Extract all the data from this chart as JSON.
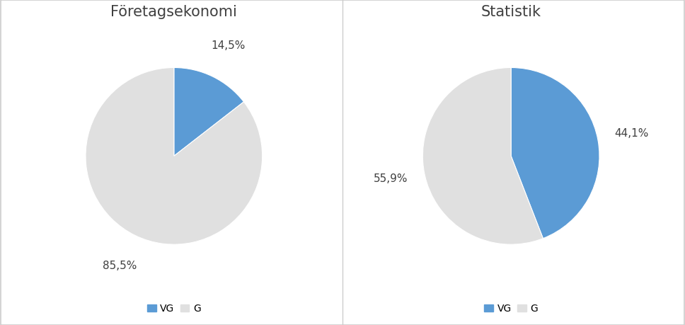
{
  "chart1": {
    "title": "Företagsekonomi",
    "values": [
      14.5,
      85.5
    ],
    "labels": [
      "VG",
      "G"
    ],
    "colors": [
      "#5B9BD5",
      "#E0E0E0"
    ],
    "autopct_labels": [
      "14,5%",
      "85,5%"
    ],
    "startangle": 90,
    "label_angles": [
      0,
      0
    ]
  },
  "chart2": {
    "title": "Statistik",
    "values": [
      44.1,
      55.9
    ],
    "labels": [
      "VG",
      "G"
    ],
    "colors": [
      "#5B9BD5",
      "#E0E0E0"
    ],
    "autopct_labels": [
      "44,1%",
      "55,9%"
    ],
    "startangle": 90,
    "label_angles": [
      0,
      0
    ]
  },
  "legend_labels": [
    "VG",
    "G"
  ],
  "legend_colors": [
    "#5B9BD5",
    "#E0E0E0"
  ],
  "background_color": "#FFFFFF",
  "text_color": "#404040",
  "title_fontsize": 15,
  "label_fontsize": 11,
  "legend_fontsize": 10,
  "border_color": "#CCCCCC",
  "divider_color": "#CCCCCC"
}
